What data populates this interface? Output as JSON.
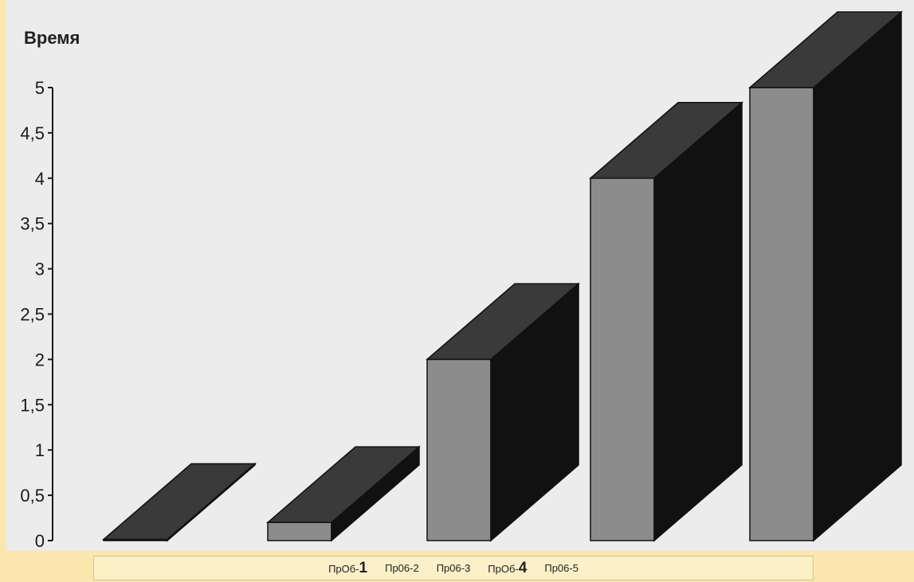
{
  "chart_data": {
    "type": "bar",
    "style": "3d",
    "ylabel": "Время",
    "ylim": [
      0,
      5
    ],
    "yticks": [
      "0",
      "0,5",
      "1",
      "1,5",
      "2",
      "2,5",
      "3",
      "3,5",
      "4",
      "4,5",
      "5"
    ],
    "categories": [
      "ПрОб-1",
      "Пр06-2",
      "Пр06-3",
      "ПрОб-4",
      "Пр06-5"
    ],
    "values": [
      0,
      0.2,
      2,
      4,
      5
    ],
    "colors": {
      "front": "#8c8c8c",
      "top": "#3a3a3a",
      "side": "#111111",
      "background": "#ececec",
      "page": "#fbe7ae"
    }
  },
  "legend": {
    "items": [
      {
        "prefix": "ПрОб-",
        "big": "1"
      },
      {
        "prefix": "Пр06-2",
        "big": ""
      },
      {
        "prefix": "Пр06-3",
        "big": ""
      },
      {
        "prefix": "ПрОб-",
        "big": "4"
      },
      {
        "prefix": "Пр06-5",
        "big": ""
      }
    ]
  }
}
